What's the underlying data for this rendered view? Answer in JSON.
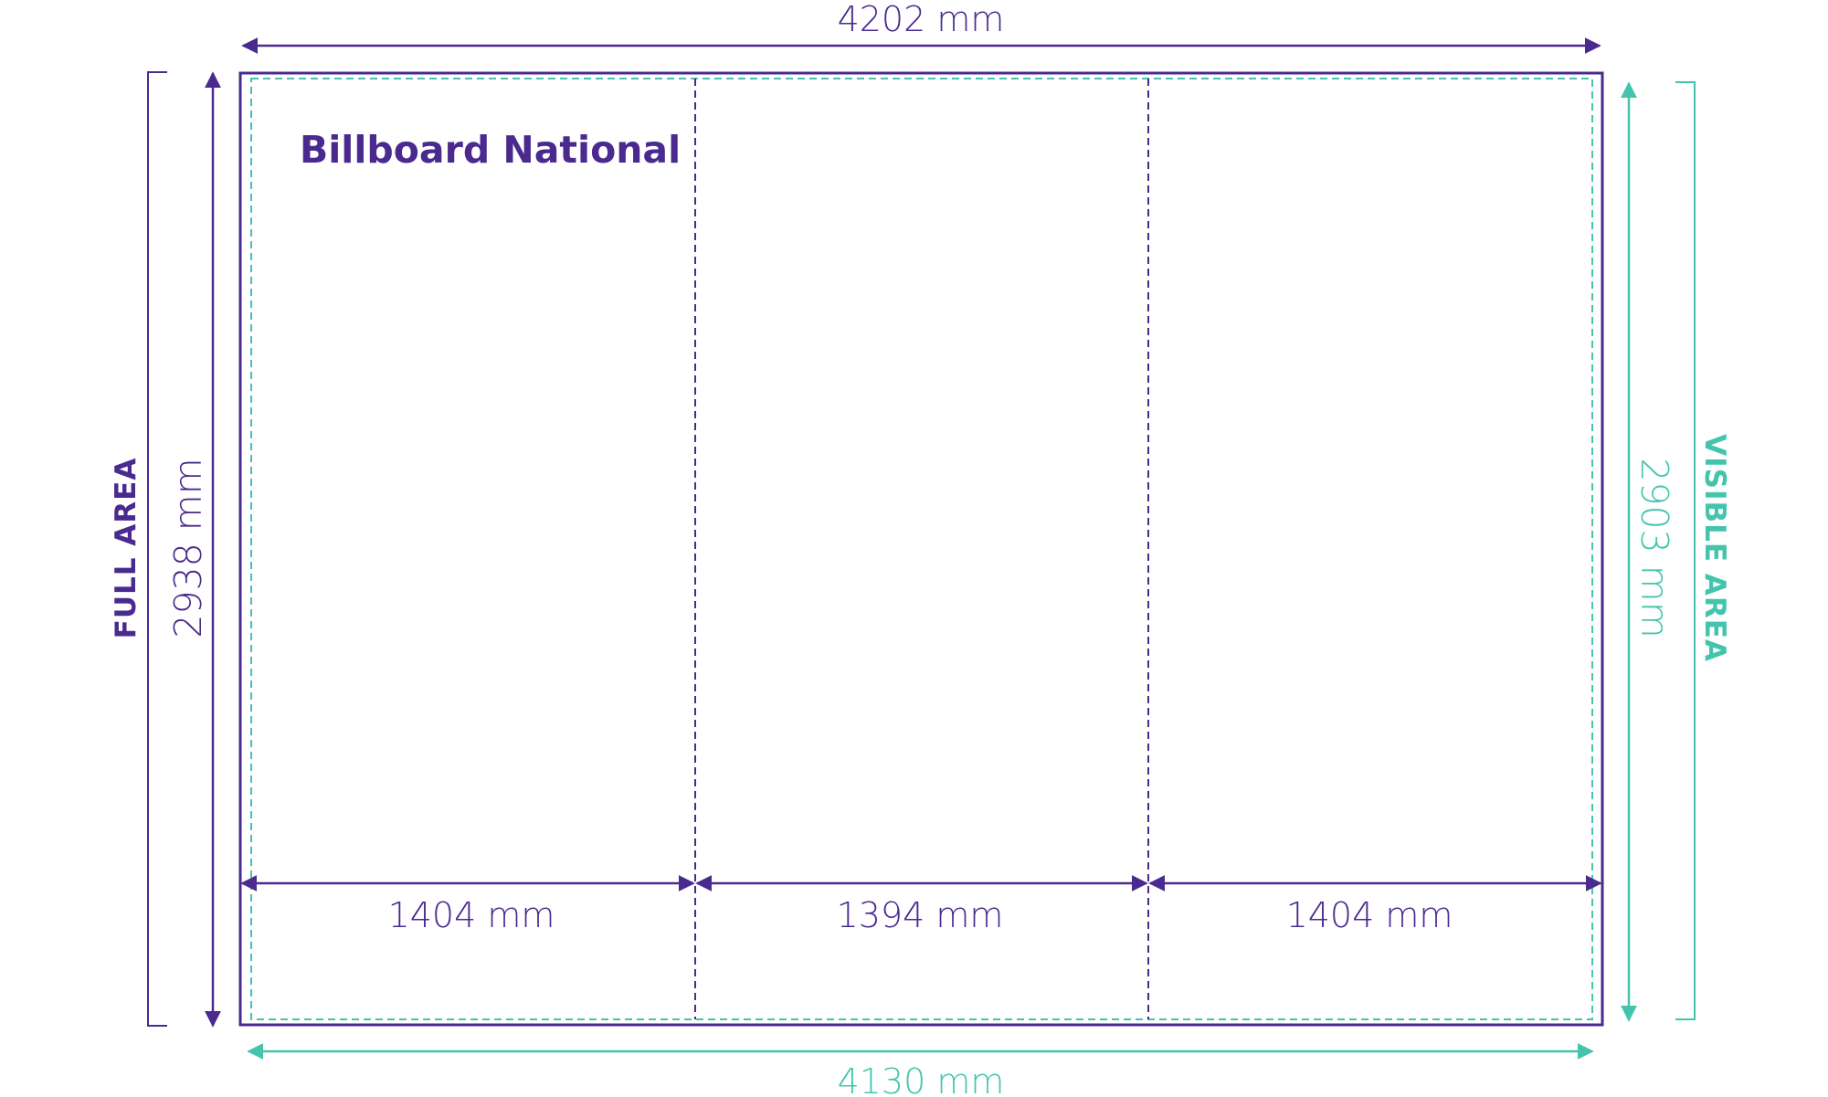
{
  "title": "Billboard National",
  "dimensions": {
    "full_width": "4202 mm",
    "visible_width": "4130 mm",
    "full_height": "2938 mm",
    "visible_height": "2903 mm",
    "panel_left": "1404 mm",
    "panel_middle": "1394 mm",
    "panel_right": "1404 mm"
  },
  "labels": {
    "full_area": "FULL AREA",
    "visible_area": "VISIBLE AREA"
  },
  "colors": {
    "purple": "#4a2a8e",
    "teal": "#45c4ad"
  }
}
